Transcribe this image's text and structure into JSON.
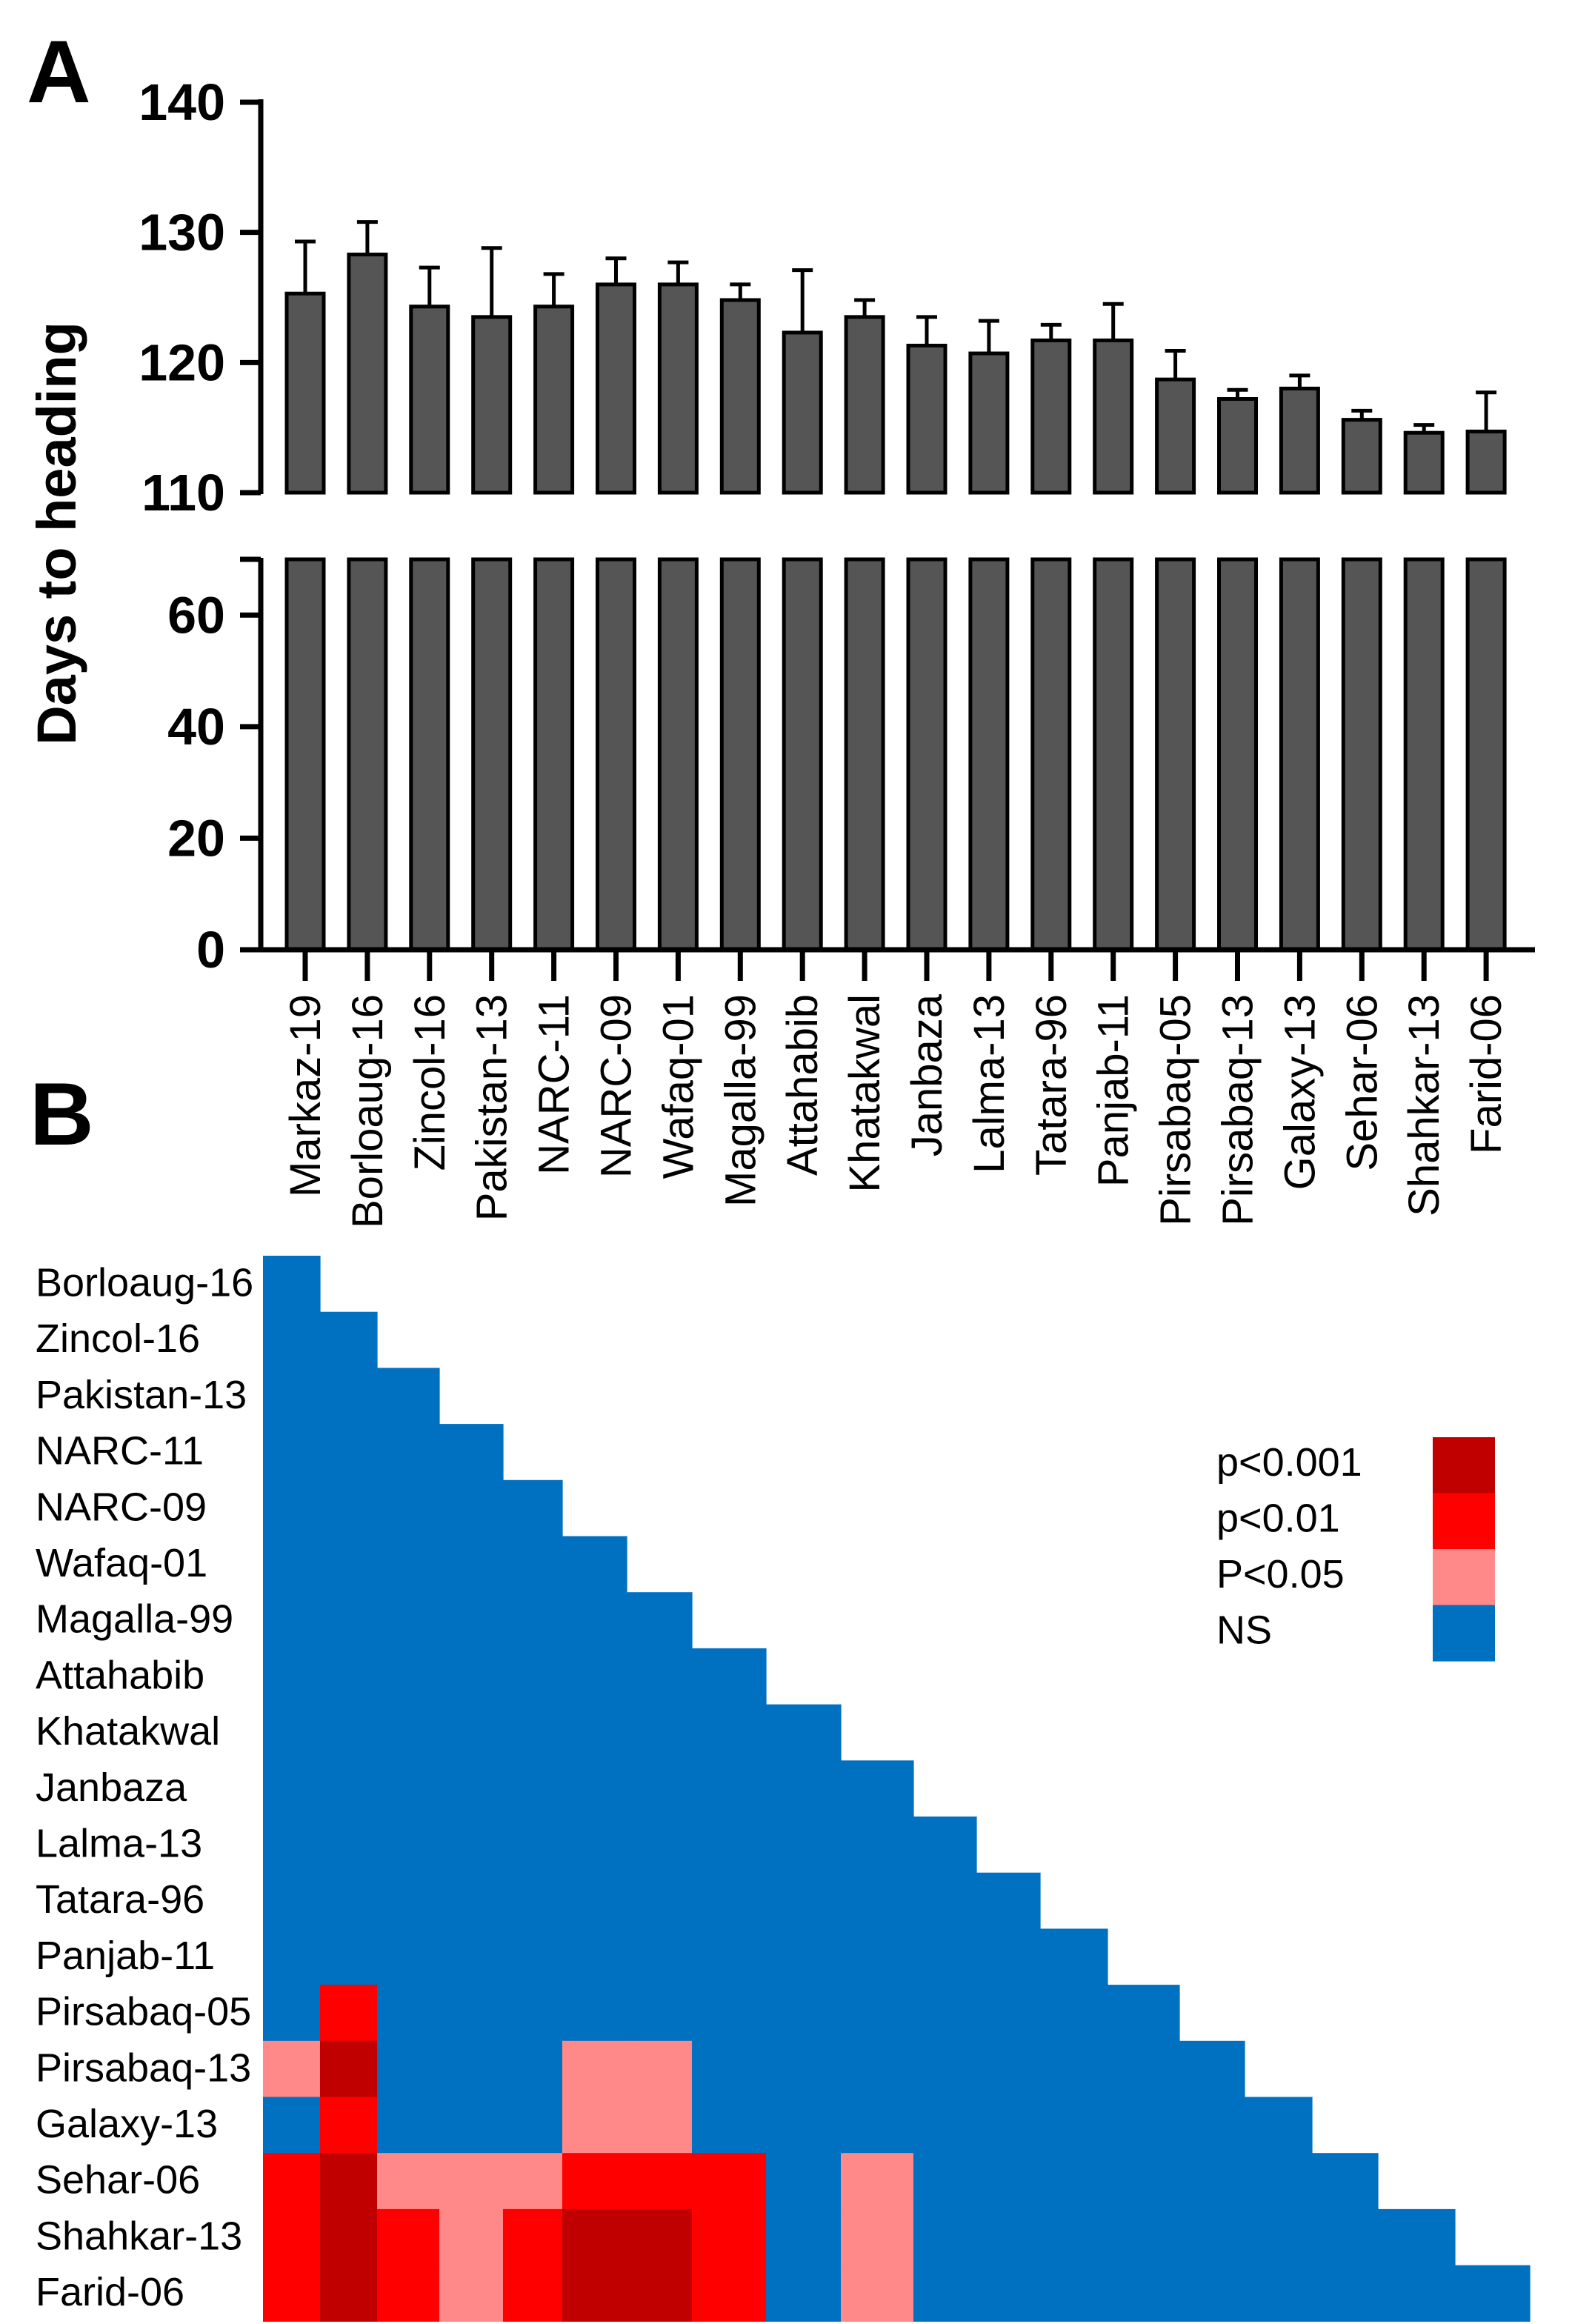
{
  "panel_a": {
    "label": "A"
  },
  "panel_b": {
    "label": "B"
  },
  "colors": {
    "bar": "#555555",
    "axis": "#000000",
    "p001": "#C00000",
    "p01": "#FF0000",
    "p05": "#FF8888",
    "ns": "#0070C0"
  },
  "legend": [
    {
      "label": "p<0.001",
      "key": "p001"
    },
    {
      "label": "p<0.01",
      "key": "p01"
    },
    {
      "label": "P<0.05",
      "key": "p05"
    },
    {
      "label": "NS",
      "key": "ns"
    }
  ],
  "chart_data": [
    {
      "type": "bar",
      "ylabel": "Days to heading",
      "axis_break": [
        70,
        110
      ],
      "ylim": [
        0,
        140
      ],
      "yticks": [
        0,
        20,
        40,
        60,
        110,
        120,
        130,
        140
      ],
      "categories": [
        "Markaz-19",
        "Borloaug-16",
        "Zincol-16",
        "Pakistan-13",
        "NARC-11",
        "NARC-09",
        "Wafaq-01",
        "Magalla-99",
        "Attahabib",
        "Khatakwal",
        "Janbaza",
        "Lalma-13",
        "Tatara-96",
        "Panjab-11",
        "Pirsabaq-05",
        "Pirsabaq-13",
        "Galaxy-13",
        "Sehar-06",
        "Shahkar-13",
        "Farid-06"
      ],
      "values": [
        125.3,
        128.3,
        124.3,
        123.5,
        124.3,
        126.0,
        126.0,
        124.8,
        122.3,
        123.5,
        121.3,
        120.7,
        121.7,
        121.7,
        118.7,
        117.2,
        118.0,
        115.6,
        114.6,
        114.7
      ],
      "errors": [
        4.0,
        2.5,
        3.0,
        5.3,
        2.5,
        2.0,
        1.7,
        1.2,
        4.8,
        1.3,
        2.2,
        2.5,
        1.2,
        2.8,
        2.2,
        0.7,
        1.0,
        0.7,
        0.6,
        3.0
      ]
    },
    {
      "type": "heatmap",
      "rows": [
        "Borloaug-16",
        "Zincol-16",
        "Pakistan-13",
        "NARC-11",
        "NARC-09",
        "Wafaq-01",
        "Magalla-99",
        "Attahabib",
        "Khatakwal",
        "Janbaza",
        "Lalma-13",
        "Tatara-96",
        "Panjab-11",
        "Pirsabaq-05",
        "Pirsabaq-13",
        "Galaxy-13",
        "Sehar-06",
        "Shahkar-13",
        "Farid-06"
      ],
      "columns": [
        "Markaz-19",
        "Borloaug-16",
        "Zincol-16",
        "Pakistan-13",
        "NARC-11",
        "NARC-09",
        "Wafaq-01",
        "Magalla-99",
        "Attahabib",
        "Khatakwal",
        "Janbaza",
        "Lalma-13",
        "Tatara-96",
        "Panjab-11",
        "Pirsabaq-05",
        "Pirsabaq-13",
        "Galaxy-13",
        "Sehar-06",
        "Shahkar-13"
      ],
      "values": [
        [
          "NS"
        ],
        [
          "NS",
          "NS"
        ],
        [
          "NS",
          "NS",
          "NS"
        ],
        [
          "NS",
          "NS",
          "NS",
          "NS"
        ],
        [
          "NS",
          "NS",
          "NS",
          "NS",
          "NS"
        ],
        [
          "NS",
          "NS",
          "NS",
          "NS",
          "NS",
          "NS"
        ],
        [
          "NS",
          "NS",
          "NS",
          "NS",
          "NS",
          "NS",
          "NS"
        ],
        [
          "NS",
          "NS",
          "NS",
          "NS",
          "NS",
          "NS",
          "NS",
          "NS"
        ],
        [
          "NS",
          "NS",
          "NS",
          "NS",
          "NS",
          "NS",
          "NS",
          "NS",
          "NS"
        ],
        [
          "NS",
          "NS",
          "NS",
          "NS",
          "NS",
          "NS",
          "NS",
          "NS",
          "NS",
          "NS"
        ],
        [
          "NS",
          "NS",
          "NS",
          "NS",
          "NS",
          "NS",
          "NS",
          "NS",
          "NS",
          "NS",
          "NS"
        ],
        [
          "NS",
          "NS",
          "NS",
          "NS",
          "NS",
          "NS",
          "NS",
          "NS",
          "NS",
          "NS",
          "NS",
          "NS"
        ],
        [
          "NS",
          "NS",
          "NS",
          "NS",
          "NS",
          "NS",
          "NS",
          "NS",
          "NS",
          "NS",
          "NS",
          "NS",
          "NS"
        ],
        [
          "NS",
          "p<0.01",
          "NS",
          "NS",
          "NS",
          "NS",
          "NS",
          "NS",
          "NS",
          "NS",
          "NS",
          "NS",
          "NS",
          "NS"
        ],
        [
          "P<0.05",
          "p<0.001",
          "NS",
          "NS",
          "NS",
          "P<0.05",
          "P<0.05",
          "NS",
          "NS",
          "NS",
          "NS",
          "NS",
          "NS",
          "NS",
          "NS"
        ],
        [
          "NS",
          "p<0.01",
          "NS",
          "NS",
          "NS",
          "P<0.05",
          "P<0.05",
          "NS",
          "NS",
          "NS",
          "NS",
          "NS",
          "NS",
          "NS",
          "NS",
          "NS"
        ],
        [
          "p<0.01",
          "p<0.001",
          "P<0.05",
          "P<0.05",
          "P<0.05",
          "p<0.01",
          "p<0.01",
          "p<0.01",
          "NS",
          "P<0.05",
          "NS",
          "NS",
          "NS",
          "NS",
          "NS",
          "NS",
          "NS"
        ],
        [
          "p<0.01",
          "p<0.001",
          "p<0.01",
          "P<0.05",
          "p<0.01",
          "p<0.001",
          "p<0.001",
          "p<0.01",
          "NS",
          "P<0.05",
          "NS",
          "NS",
          "NS",
          "NS",
          "NS",
          "NS",
          "NS",
          "NS"
        ],
        [
          "p<0.01",
          "p<0.001",
          "p<0.01",
          "P<0.05",
          "p<0.01",
          "p<0.001",
          "p<0.001",
          "p<0.01",
          "NS",
          "P<0.05",
          "NS",
          "NS",
          "NS",
          "NS",
          "NS",
          "NS",
          "NS",
          "NS",
          "NS"
        ]
      ]
    }
  ]
}
